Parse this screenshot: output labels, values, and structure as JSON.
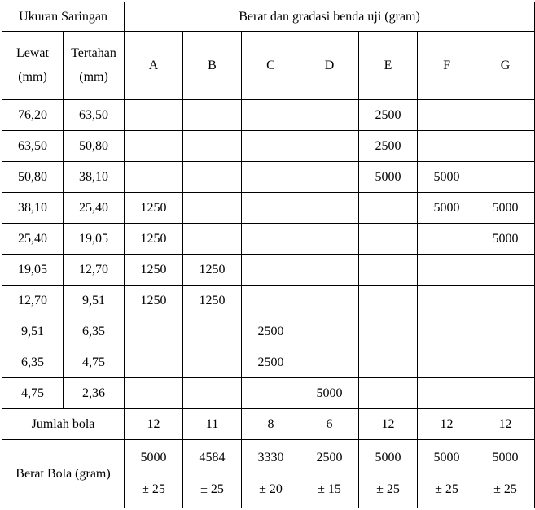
{
  "title_left": "Ukuran Saringan",
  "title_right": "Berat dan gradasi benda uji (gram)",
  "sub_left_top": "Lewat",
  "sub_left_bot": "(mm)",
  "sub_right_top": "Tertahan",
  "sub_right_bot": "(mm)",
  "cols": [
    "A",
    "B",
    "C",
    "D",
    "E",
    "F",
    "G"
  ],
  "rows": [
    {
      "lewat": "76,20",
      "tertahan": "63,50",
      "v": [
        "",
        "",
        "",
        "",
        "2500",
        "",
        ""
      ]
    },
    {
      "lewat": "63,50",
      "tertahan": "50,80",
      "v": [
        "",
        "",
        "",
        "",
        "2500",
        "",
        ""
      ]
    },
    {
      "lewat": "50,80",
      "tertahan": "38,10",
      "v": [
        "",
        "",
        "",
        "",
        "5000",
        "5000",
        ""
      ]
    },
    {
      "lewat": "38,10",
      "tertahan": "25,40",
      "v": [
        "1250",
        "",
        "",
        "",
        "",
        "5000",
        "5000"
      ]
    },
    {
      "lewat": "25,40",
      "tertahan": "19,05",
      "v": [
        "1250",
        "",
        "",
        "",
        "",
        "",
        "5000"
      ]
    },
    {
      "lewat": "19,05",
      "tertahan": "12,70",
      "v": [
        "1250",
        "1250",
        "",
        "",
        "",
        "",
        ""
      ]
    },
    {
      "lewat": "12,70",
      "tertahan": "9,51",
      "v": [
        "1250",
        "1250",
        "",
        "",
        "",
        "",
        ""
      ]
    },
    {
      "lewat": "9,51",
      "tertahan": "6,35",
      "v": [
        "",
        "",
        "2500",
        "",
        "",
        "",
        ""
      ]
    },
    {
      "lewat": "6,35",
      "tertahan": "4,75",
      "v": [
        "",
        "",
        "2500",
        "",
        "",
        "",
        ""
      ]
    },
    {
      "lewat": "4,75",
      "tertahan": "2,36",
      "v": [
        "",
        "",
        "",
        "5000",
        "",
        "",
        ""
      ]
    }
  ],
  "jumlah_label": "Jumlah bola",
  "jumlah": [
    "12",
    "11",
    "8",
    "6",
    "12",
    "12",
    "12"
  ],
  "berat_label": "Berat Bola (gram)",
  "berat_top": [
    "5000",
    "4584",
    "3330",
    "2500",
    "5000",
    "5000",
    "5000"
  ],
  "berat_bot": [
    "± 25",
    "± 25",
    "± 20",
    "± 15",
    "± 25",
    "± 25",
    "± 25"
  ],
  "col_widths": {
    "lewat": 75,
    "tertahan": 75,
    "data": 72
  }
}
